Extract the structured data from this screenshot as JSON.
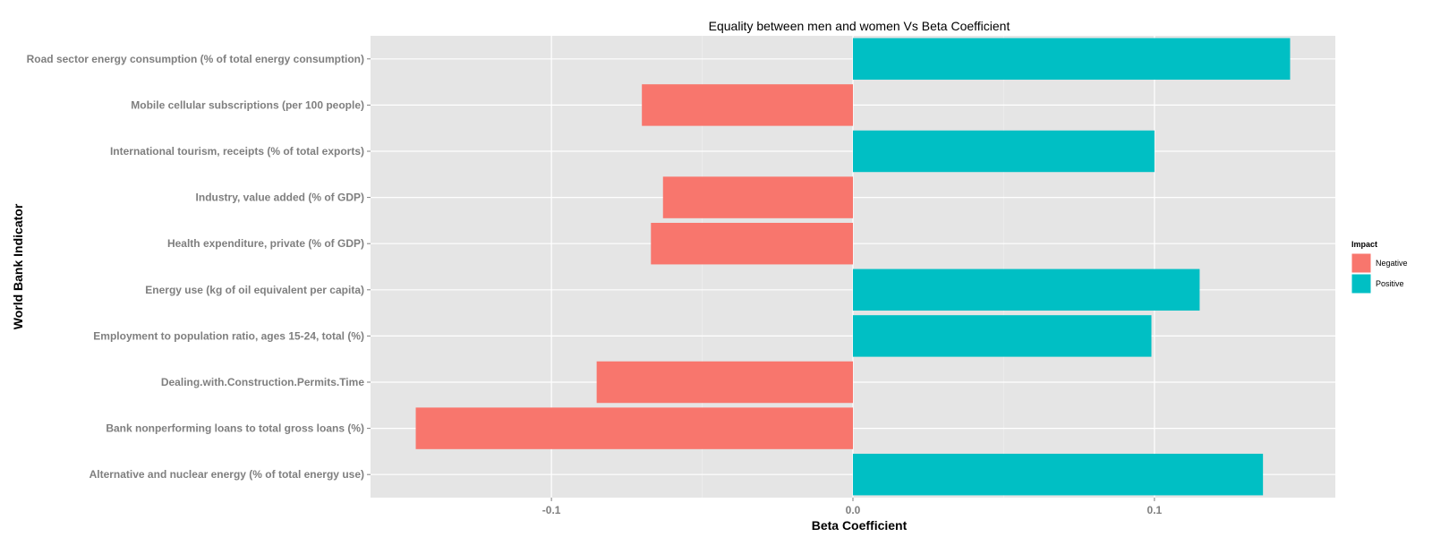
{
  "chart_data": {
    "type": "bar",
    "orientation": "horizontal",
    "title": "Equality between men and women Vs Beta Coefficient",
    "xlabel": "Beta Coefficient",
    "ylabel": "World Bank Indicator",
    "xlim": [
      -0.16,
      0.16
    ],
    "xticks": [
      -0.1,
      0.0,
      0.1
    ],
    "xtick_labels": [
      "-0.1",
      "0.0",
      "0.1"
    ],
    "grid": true,
    "legend": {
      "title": "Impact",
      "position": "right",
      "entries": [
        {
          "name": "Negative",
          "color": "#F8766D"
        },
        {
          "name": "Positive",
          "color": "#00BFC4"
        }
      ]
    },
    "categories": [
      "Road sector energy consumption (% of total energy consumption)",
      "Mobile cellular subscriptions (per 100 people)",
      "International tourism, receipts (% of total exports)",
      "Industry, value added (% of GDP)",
      "Health expenditure, private (% of GDP)",
      "Energy use (kg of oil equivalent per capita)",
      "Employment to population ratio, ages 15-24, total (%)",
      "Dealing.with.Construction.Permits.Time",
      "Bank nonperforming loans to total gross loans (%)",
      "Alternative and nuclear energy (% of total energy use)"
    ],
    "values": [
      0.145,
      -0.07,
      0.1,
      -0.063,
      -0.067,
      0.115,
      0.099,
      -0.085,
      -0.145,
      0.136
    ],
    "impact": [
      "Positive",
      "Negative",
      "Positive",
      "Negative",
      "Negative",
      "Positive",
      "Positive",
      "Negative",
      "Negative",
      "Positive"
    ]
  },
  "colors": {
    "panel_background": "#E5E5E5",
    "grid_major": "#FFFFFF",
    "negative": "#F8766D",
    "positive": "#00BFC4"
  }
}
